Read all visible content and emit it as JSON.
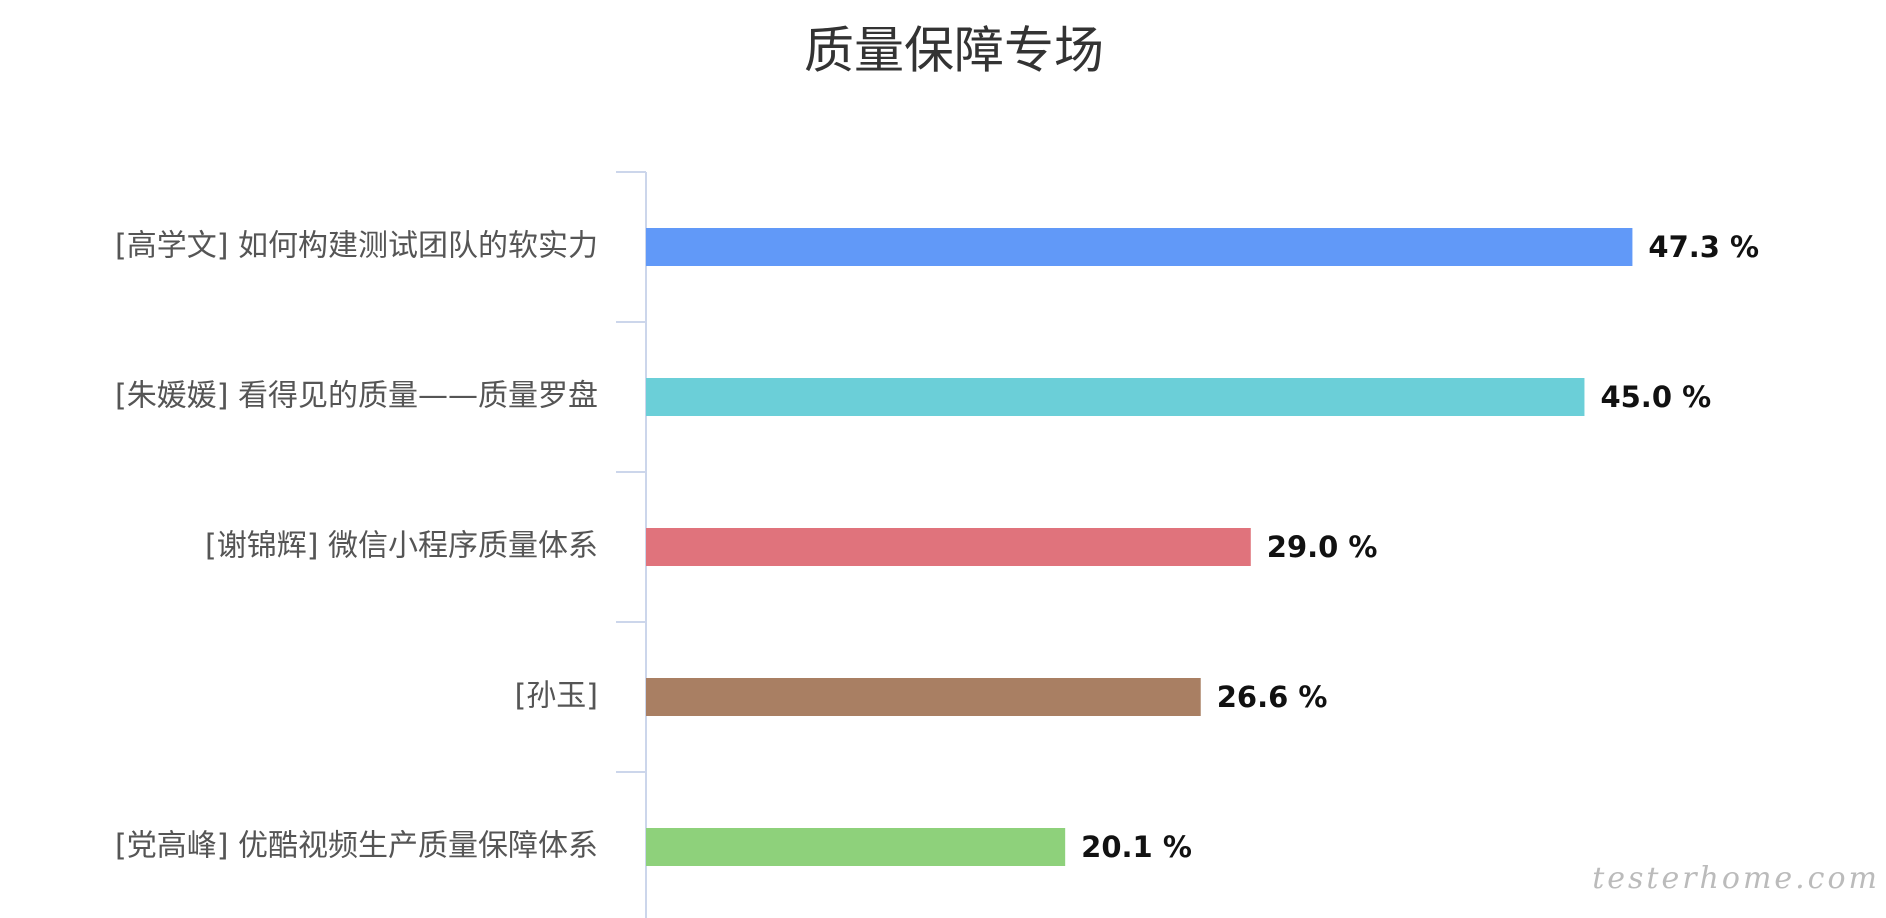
{
  "chart_data": {
    "type": "bar",
    "orientation": "horizontal",
    "title": "质量保障专场",
    "categories": [
      "[高学文] 如何构建测试团队的软实力",
      "[朱媛媛] 看得见的质量——质量罗盘",
      "[谢锦辉] 微信小程序质量体系",
      "[孙玉]",
      "[党高峰] 优酷视频生产质量保障体系"
    ],
    "values": [
      47.3,
      45.0,
      29.0,
      26.6,
      20.1
    ],
    "value_labels": [
      "47.3 %",
      "45.0 %",
      "29.0 %",
      "26.6 %",
      "20.1 %"
    ],
    "colors": [
      "#6199f8",
      "#6bcfd8",
      "#e0737c",
      "#a97f63",
      "#8ed17b"
    ],
    "xlim": [
      0,
      55
    ],
    "grid": false,
    "watermark": "testerhome.com"
  }
}
